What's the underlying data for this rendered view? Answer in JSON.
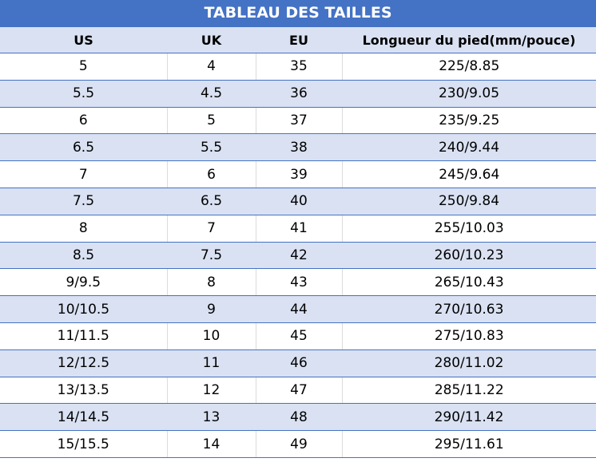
{
  "title": "TABLEAU DES TAILLES",
  "colors": {
    "header_blue": "#4472C4",
    "row_alt": "#D9E1F2"
  },
  "headers": [
    "US",
    "UK",
    "EU",
    "Longueur du pied(mm/pouce)"
  ],
  "rows": [
    [
      "5",
      "4",
      "35",
      "225/8.85"
    ],
    [
      "5.5",
      "4.5",
      "36",
      "230/9.05"
    ],
    [
      "6",
      "5",
      "37",
      "235/9.25"
    ],
    [
      "6.5",
      "5.5",
      "38",
      "240/9.44"
    ],
    [
      "7",
      "6",
      "39",
      "245/9.64"
    ],
    [
      "7.5",
      "6.5",
      "40",
      "250/9.84"
    ],
    [
      "8",
      "7",
      "41",
      "255/10.03"
    ],
    [
      "8.5",
      "7.5",
      "42",
      "260/10.23"
    ],
    [
      "9/9.5",
      "8",
      "43",
      "265/10.43"
    ],
    [
      "10/10.5",
      "9",
      "44",
      "270/10.63"
    ],
    [
      "11/11.5",
      "10",
      "45",
      "275/10.83"
    ],
    [
      "12/12.5",
      "11",
      "46",
      "280/11.02"
    ],
    [
      "13/13.5",
      "12",
      "47",
      "285/11.22"
    ],
    [
      "14/14.5",
      "13",
      "48",
      "290/11.42"
    ],
    [
      "15/15.5",
      "14",
      "49",
      "295/11.61"
    ]
  ]
}
